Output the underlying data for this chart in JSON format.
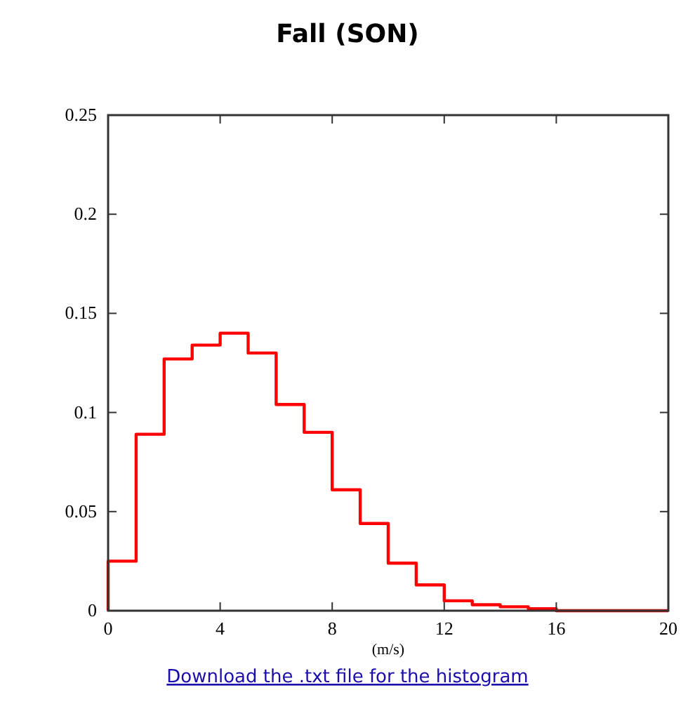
{
  "chart_data": {
    "type": "histogram",
    "title": "Fall (SON)",
    "xlabel": "(m/s)",
    "bins": [
      0,
      1,
      2,
      3,
      4,
      5,
      6,
      7,
      8,
      9,
      10,
      11,
      12,
      13,
      14,
      15,
      16,
      17,
      18,
      19,
      20
    ],
    "values": [
      0.025,
      0.089,
      0.127,
      0.134,
      0.14,
      0.13,
      0.104,
      0.09,
      0.061,
      0.044,
      0.024,
      0.013,
      0.005,
      0.003,
      0.002,
      0.001,
      0,
      0,
      0,
      0
    ],
    "color": "#ff0000",
    "xlim": [
      0,
      20
    ],
    "xticks": [
      0,
      4,
      8,
      12,
      16,
      20
    ],
    "ylim": [
      0,
      0.25
    ],
    "yticks": [
      0,
      0.05,
      0.1,
      0.15,
      0.2,
      0.25
    ],
    "annotations": [
      "Download the .txt file for the histogram"
    ]
  }
}
